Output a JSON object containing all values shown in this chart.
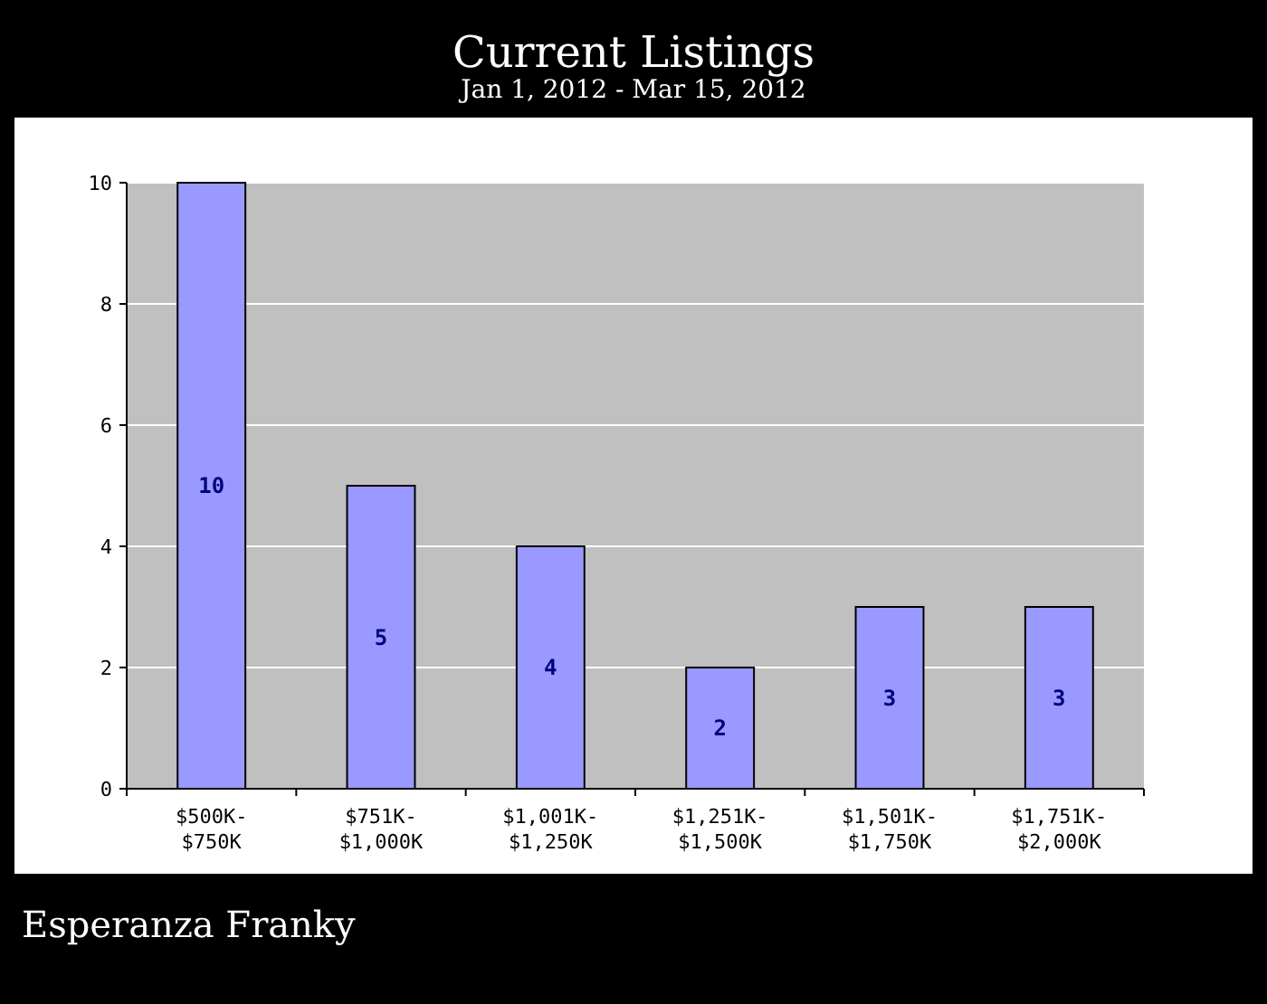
{
  "chart_data": {
    "type": "bar",
    "title": "Current Listings",
    "subtitle": "Jan 1, 2012 - Mar 15, 2012",
    "categories": [
      "$500K-\n$750K",
      "$751K-\n$1,000K",
      "$1,001K-\n$1,250K",
      "$1,251K-\n$1,500K",
      "$1,501K-\n$1,750K",
      "$1,751K-\n$2,000K"
    ],
    "values": [
      10,
      5,
      4,
      2,
      3,
      3
    ],
    "color": "#9999ff",
    "ylim": [
      0,
      10
    ],
    "yticks": [
      0,
      2,
      4,
      6,
      8,
      10
    ],
    "grid": "y",
    "data_labels": true,
    "annotations": [
      "Esperanza Franky"
    ]
  }
}
